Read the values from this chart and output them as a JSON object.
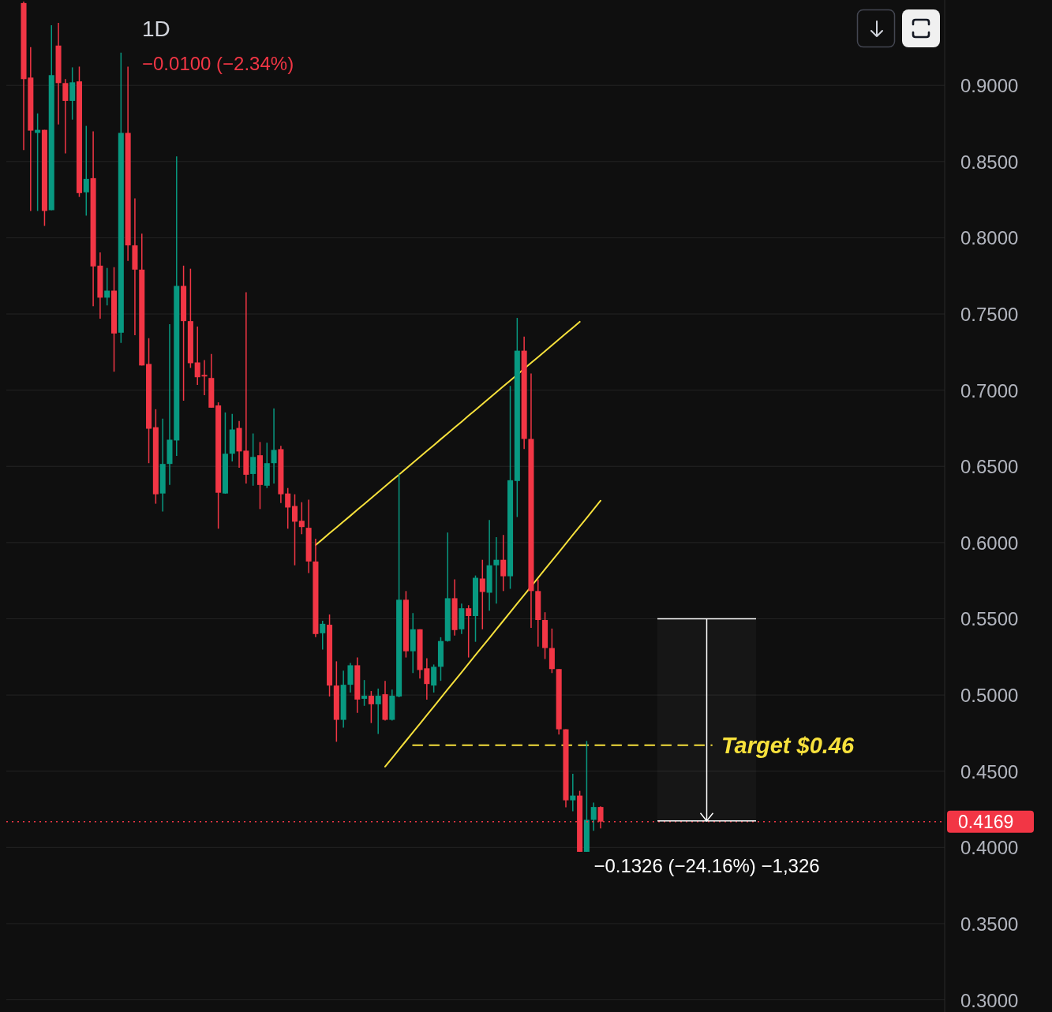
{
  "chart_data": {
    "type": "candlestick",
    "title": "1D",
    "subtitle": "−0.0100 (−2.34%)",
    "categories": [
      null,
      null,
      null,
      null,
      null,
      null,
      null,
      null,
      null,
      null,
      null,
      null,
      null,
      null,
      null,
      null,
      null,
      null,
      null,
      null,
      null,
      null,
      null,
      null,
      null,
      null,
      null,
      null,
      null,
      null,
      null,
      null,
      null,
      null,
      null,
      null,
      null,
      null,
      null,
      null,
      null,
      null,
      null,
      null,
      null,
      null,
      null,
      null,
      null,
      null,
      null,
      null,
      null,
      null,
      null,
      null,
      null,
      null,
      null,
      null,
      null,
      null,
      null,
      null,
      null,
      null,
      null,
      null,
      null,
      null,
      null,
      null,
      null,
      null,
      null,
      null,
      null,
      null,
      null,
      null,
      null,
      null,
      null,
      null,
      null,
      null,
      null,
      null,
      null,
      null,
      null,
      null,
      null,
      null,
      null,
      null,
      null,
      null,
      null,
      null,
      null,
      null,
      null,
      null,
      null,
      null,
      null,
      null,
      null,
      null,
      null,
      null,
      null,
      null,
      null,
      null,
      null,
      null,
      null,
      null,
      null,
      null,
      null,
      null,
      null,
      null,
      null,
      null,
      null,
      null,
      null,
      null,
      null,
      null,
      null
    ],
    "ohlc": [
      null,
      null,
      [
        0.954,
        0.955,
        0.8575,
        0.9041
      ],
      [
        0.9051,
        0.9251,
        0.8176,
        0.8703
      ],
      [
        0.8688,
        0.8816,
        0.8176,
        0.8708
      ],
      [
        0.8708,
        0.8708,
        0.8078,
        0.8176
      ],
      [
        0.8181,
        0.9394,
        0.8181,
        0.9067
      ],
      [
        0.9261,
        0.941,
        0.8744,
        0.9015
      ],
      [
        0.9015,
        0.9041,
        0.8554,
        0.8898
      ],
      [
        0.8898,
        0.9118,
        0.8775,
        0.902
      ],
      [
        0.9026,
        0.9123,
        0.8268,
        0.8293
      ],
      [
        0.8298,
        0.8734,
        0.8145,
        0.8386
      ],
      [
        0.8391,
        0.8698,
        0.7551,
        0.7812
      ],
      [
        0.7817,
        0.7904,
        0.7469,
        0.7607
      ],
      [
        0.7607,
        0.7802,
        0.7556,
        0.7653
      ],
      [
        0.7653,
        0.7807,
        0.7121,
        0.7372
      ],
      [
        0.7377,
        0.9215,
        0.731,
        0.8688
      ],
      [
        0.8688,
        0.9123,
        0.7848,
        0.795
      ],
      [
        0.795,
        0.8258,
        0.7361,
        0.7791
      ],
      [
        0.7791,
        0.8027,
        0.7162,
        0.7162
      ],
      [
        0.7172,
        0.7341,
        0.6521,
        0.6747
      ],
      [
        0.6757,
        0.6875,
        0.6255,
        0.6317
      ],
      [
        0.6322,
        0.6813,
        0.6204,
        0.6516
      ],
      [
        0.6516,
        0.7433,
        0.6378,
        0.6675
      ],
      [
        0.667,
        0.8534,
        0.6568,
        0.7684
      ],
      [
        0.7684,
        0.7817,
        0.6931,
        0.7453
      ],
      [
        0.7453,
        0.7797,
        0.7146,
        0.7177
      ],
      [
        0.7182,
        0.7418,
        0.7034,
        0.7085
      ],
      [
        0.71,
        0.7197,
        0.6967,
        0.709
      ],
      [
        0.708,
        0.7238,
        0.6885,
        0.6885
      ],
      [
        0.69,
        0.692,
        0.6091,
        0.6327
      ],
      [
        0.6322,
        0.6854,
        0.632,
        0.6583
      ],
      [
        0.6583,
        0.6844,
        0.6532,
        0.6742
      ],
      [
        0.6752,
        0.6798,
        0.6491,
        0.6598
      ],
      [
        0.6603,
        0.7643,
        0.6388,
        0.6445
      ],
      [
        0.645,
        0.6716,
        0.6373,
        0.6562
      ],
      [
        0.6573,
        0.666,
        0.622,
        0.6378
      ],
      [
        0.6373,
        0.6655,
        0.6358,
        0.6521
      ],
      [
        0.6521,
        0.688,
        0.6388,
        0.6608
      ],
      [
        0.6613,
        0.6634,
        0.626,
        0.6317
      ],
      [
        0.6322,
        0.6358,
        0.6091,
        0.623
      ],
      [
        0.624,
        0.6317,
        0.5851,
        0.6137
      ],
      [
        0.6143,
        0.6265,
        0.6055,
        0.6102
      ],
      [
        0.6097,
        0.6281,
        0.58,
        0.5876
      ],
      [
        0.5876,
        0.6025,
        0.538,
        0.54
      ],
      [
        0.5405,
        0.5487,
        0.5298,
        0.5467
      ],
      [
        0.5461,
        0.5528,
        0.499,
        0.5062
      ],
      [
        0.5062,
        0.5221,
        0.4693,
        0.4837
      ],
      [
        0.4837,
        0.5159,
        0.4786,
        0.5067
      ],
      [
        0.5067,
        0.521,
        0.5016,
        0.5195
      ],
      [
        0.5195,
        0.5246,
        0.4883,
        0.497
      ],
      [
        0.4975,
        0.5098,
        0.4929,
        0.4995
      ],
      [
        0.4995,
        0.5026,
        0.4816,
        0.4939
      ],
      [
        0.4939,
        0.5042,
        0.4744,
        0.4995
      ],
      [
        0.5005,
        0.5093,
        0.4832,
        0.4837
      ],
      [
        0.4837,
        0.5036,
        0.4832,
        0.4995
      ],
      [
        0.499,
        0.645,
        0.4985,
        0.5625
      ],
      [
        0.5625,
        0.5682,
        0.5246,
        0.5287
      ],
      [
        0.5287,
        0.5538,
        0.5144,
        0.5431
      ],
      [
        0.5431,
        0.5431,
        0.5108,
        0.5164
      ],
      [
        0.5175,
        0.5241,
        0.497,
        0.5072
      ],
      [
        0.5062,
        0.52,
        0.5016,
        0.5185
      ],
      [
        0.5185,
        0.5379,
        0.5093,
        0.5354
      ],
      [
        0.5354,
        0.6066,
        0.535,
        0.5635
      ],
      [
        0.5635,
        0.5759,
        0.539,
        0.5426
      ],
      [
        0.5431,
        0.56,
        0.54,
        0.5569
      ],
      [
        0.5569,
        0.5589,
        0.5246,
        0.5518
      ],
      [
        0.5518,
        0.5784,
        0.5349,
        0.5769
      ],
      [
        0.5764,
        0.5887,
        0.5431,
        0.5676
      ],
      [
        0.5671,
        0.6148,
        0.5553,
        0.5851
      ],
      [
        0.5851,
        0.6035,
        0.56,
        0.5887
      ],
      [
        0.5887,
        0.605,
        0.5682,
        0.5779
      ],
      [
        0.5779,
        0.7028,
        0.5697,
        0.6409
      ],
      [
        0.6404,
        0.7474,
        0.6168,
        0.7259
      ],
      [
        0.7259,
        0.7351,
        0.6614,
        0.668
      ],
      [
        0.668,
        0.711,
        0.5441,
        0.5682
      ],
      [
        0.5682,
        0.5759,
        0.5318,
        0.5492
      ],
      [
        0.5492,
        0.5543,
        0.5236,
        0.5308
      ],
      [
        0.5308,
        0.5436,
        0.5144,
        0.517
      ],
      [
        0.517,
        0.517,
        0.474,
        0.4775
      ],
      [
        0.4775,
        0.4775,
        0.4263,
        0.4309
      ],
      [
        0.4309,
        0.4483,
        0.4237,
        0.434
      ],
      [
        0.434,
        0.4371,
        0.3971,
        0.3971
      ],
      [
        0.3971,
        0.4698,
        0.3971,
        0.4181
      ],
      [
        0.4181,
        0.4294,
        0.4109,
        0.4265
      ],
      [
        0.4265,
        0.4269,
        0.4125,
        0.4169
      ],
      null,
      null,
      null,
      null,
      null,
      null,
      null,
      null,
      null,
      null,
      null,
      null,
      null,
      null,
      null,
      null,
      null,
      null,
      null,
      null,
      null,
      null,
      null,
      null,
      null,
      null,
      null,
      null,
      null,
      null,
      null,
      null,
      null,
      null,
      null,
      null,
      null,
      null,
      null,
      null,
      null,
      null,
      null,
      null,
      null,
      null,
      null,
      null,
      null
    ],
    "colors": [
      null,
      null,
      "#f23645",
      "#f23645",
      "#089981",
      "#f23645",
      "#089981",
      "#f23645",
      "#f23645",
      "#089981",
      "#f23645",
      "#089981",
      "#f23645",
      "#f23645",
      "#089981",
      "#f23645",
      "#089981",
      "#f23645",
      "#f23645",
      "#f23645",
      "#f23645",
      "#f23645",
      "#089981",
      "#089981",
      "#089981",
      "#f23645",
      "#f23645",
      "#f23645",
      "#f23645",
      "#f23645",
      "#f23645",
      "#089981",
      "#089981",
      "#f23645",
      "#f23645",
      "#089981",
      "#f23645",
      "#089981",
      "#089981",
      "#f23645",
      "#f23645",
      "#f23645",
      "#f23645",
      "#f23645",
      "#f23645",
      "#089981",
      "#f23645",
      "#f23645",
      "#089981",
      "#089981",
      "#f23645",
      "#089981",
      "#f23645",
      "#089981",
      "#f23645",
      "#089981",
      "#089981",
      "#f23645",
      "#089981",
      "#f23645",
      "#f23645",
      "#089981",
      "#089981",
      "#089981",
      "#f23645",
      "#089981",
      "#f23645",
      "#089981",
      "#f23645",
      "#089981",
      "#089981",
      "#f23645",
      "#089981",
      "#089981",
      "#f23645",
      "#f23645",
      "#f23645",
      "#f23645",
      "#f23645",
      "#f23645",
      "#f23645",
      "#089981",
      "#f23645",
      "#089981",
      "#089981",
      "#f23645",
      null,
      null,
      null,
      null,
      null,
      null,
      null,
      null,
      null,
      null,
      null,
      null,
      null,
      null,
      null,
      null,
      null,
      null,
      null,
      null,
      null,
      null,
      null,
      null,
      null,
      null,
      null,
      null,
      null,
      null,
      null,
      null,
      null,
      null,
      null,
      null,
      null,
      null,
      null,
      null,
      null,
      null,
      null,
      null,
      null,
      null,
      null,
      null,
      null
    ],
    "series": [
      {
        "type": "line",
        "color": "#f7e13c",
        "values": [
          null,
          null,
          null,
          null,
          null,
          null,
          null,
          null,
          null,
          null,
          null,
          null,
          null,
          null,
          null,
          null,
          null,
          null,
          null,
          null,
          null,
          null,
          null,
          null,
          null,
          null,
          null,
          null,
          null,
          null,
          null,
          null,
          null,
          null,
          null,
          null,
          null,
          null,
          null,
          null,
          null,
          null,
          null,
          null,
          0.5984,
          0.6022,
          0.6061,
          0.6099,
          0.6138,
          0.6176,
          0.6215,
          0.6253,
          0.6292,
          0.6331,
          0.6369,
          0.6408,
          0.6446,
          0.6485,
          0.6523,
          0.6562,
          0.6601,
          0.6639,
          0.6678,
          0.6716,
          0.6755,
          0.6793,
          0.6832,
          0.687,
          0.6909,
          0.6948,
          0.6986,
          0.7025,
          0.7063,
          0.7102,
          0.714,
          0.7179,
          0.7217,
          0.7256,
          0.7295,
          0.7333,
          0.7372,
          0.741,
          0.7449,
          null,
          null,
          null,
          null,
          null,
          null,
          null,
          null,
          null,
          null,
          null,
          null,
          null,
          null,
          null,
          null,
          null,
          null,
          null,
          null,
          null,
          null,
          null,
          null,
          null,
          null,
          null,
          null,
          null,
          null,
          null,
          null,
          null,
          null,
          null,
          null,
          null,
          null,
          null,
          null,
          null,
          null,
          null,
          null,
          null,
          null,
          null,
          null,
          null,
          null,
          null,
          null
        ]
      },
      {
        "type": "line",
        "color": "#f7e13c",
        "values": [
          null,
          null,
          null,
          null,
          null,
          null,
          null,
          null,
          null,
          null,
          null,
          null,
          null,
          null,
          null,
          null,
          null,
          null,
          null,
          null,
          null,
          null,
          null,
          null,
          null,
          null,
          null,
          null,
          null,
          null,
          null,
          null,
          null,
          null,
          null,
          null,
          null,
          null,
          null,
          null,
          null,
          null,
          null,
          null,
          null,
          null,
          null,
          null,
          null,
          null,
          null,
          null,
          null,
          null,
          0.453,
          0.4586,
          0.4643,
          0.4699,
          0.4755,
          0.4811,
          0.4868,
          0.4924,
          0.498,
          0.5037,
          0.5093,
          0.5149,
          0.5205,
          0.5262,
          0.5318,
          0.5374,
          0.5431,
          0.5487,
          0.5543,
          0.56,
          0.5656,
          0.5712,
          0.5768,
          0.5825,
          0.5881,
          0.5937,
          0.5994,
          0.605,
          0.6106,
          0.6162,
          0.6219,
          0.6275,
          null,
          null,
          null,
          null,
          null,
          null,
          null,
          null,
          null,
          null,
          null,
          null,
          null,
          null,
          null,
          null,
          null,
          null,
          null,
          null,
          null,
          null,
          null,
          null,
          null,
          null,
          null,
          null,
          null,
          null,
          null,
          null,
          null,
          null,
          null,
          null,
          null,
          null,
          null,
          null,
          null,
          null,
          null,
          null,
          null,
          null,
          null,
          null,
          null
        ]
      },
      {
        "type": "line",
        "name": "Target $0.46",
        "color": "#f7e13c",
        "line_style": "dashed",
        "values": [
          null,
          null,
          null,
          null,
          null,
          null,
          null,
          null,
          null,
          null,
          null,
          null,
          null,
          null,
          null,
          null,
          null,
          null,
          null,
          null,
          null,
          null,
          null,
          null,
          null,
          null,
          null,
          null,
          null,
          null,
          null,
          null,
          null,
          null,
          null,
          null,
          null,
          null,
          null,
          null,
          null,
          null,
          null,
          null,
          null,
          null,
          null,
          null,
          null,
          null,
          null,
          null,
          null,
          null,
          null,
          null,
          null,
          null,
          0.467,
          0.467,
          0.467,
          0.467,
          0.467,
          0.467,
          0.467,
          0.467,
          0.467,
          0.467,
          0.467,
          0.467,
          0.467,
          0.467,
          0.467,
          0.467,
          0.467,
          0.467,
          0.467,
          0.467,
          0.467,
          0.467,
          0.467,
          0.467,
          0.467,
          0.467,
          0.467,
          0.467,
          0.467,
          0.467,
          0.467,
          0.467,
          0.467,
          0.467,
          0.467,
          0.467,
          0.467,
          0.467,
          0.467,
          0.467,
          0.467,
          0.467,
          0.467,
          0.467,
          null,
          null,
          null,
          null,
          null,
          null,
          null,
          null,
          null,
          null,
          null,
          null,
          null,
          null,
          null,
          null,
          null,
          null,
          null,
          null,
          null,
          null,
          null,
          null,
          null,
          null,
          null,
          null,
          null,
          null,
          null,
          null,
          null
        ]
      }
    ],
    "ylim": [
      0.292,
      0.956
    ],
    "yticks": [
      {
        "value": 0.3,
        "label": "0.3000"
      },
      {
        "value": 0.35,
        "label": "0.3500"
      },
      {
        "value": 0.4,
        "label": "0.4000"
      },
      {
        "value": 0.45,
        "label": "0.4500"
      },
      {
        "value": 0.5,
        "label": "0.5000"
      },
      {
        "value": 0.55,
        "label": "0.5500"
      },
      {
        "value": 0.6,
        "label": "0.6000"
      },
      {
        "value": 0.65,
        "label": "0.6500"
      },
      {
        "value": 0.7,
        "label": "0.7000"
      },
      {
        "value": 0.75,
        "label": "0.7500"
      },
      {
        "value": 0.8,
        "label": "0.8000"
      },
      {
        "value": 0.85,
        "label": "0.8500"
      },
      {
        "value": 0.9,
        "label": "0.9000"
      }
    ],
    "grid": "y",
    "tick_labels": "y",
    "ref_lines": [
      {
        "axis": "y",
        "value": 0.4169,
        "label": "0.4169",
        "color": "#f23645",
        "line_style": "dotted"
      }
    ],
    "bands": [
      {
        "axis": "y",
        "from": 0.55,
        "to": 0.4174,
        "label": "−0.1326 (−24.16%) −1,326",
        "color": "#ffffff"
      }
    ]
  }
}
